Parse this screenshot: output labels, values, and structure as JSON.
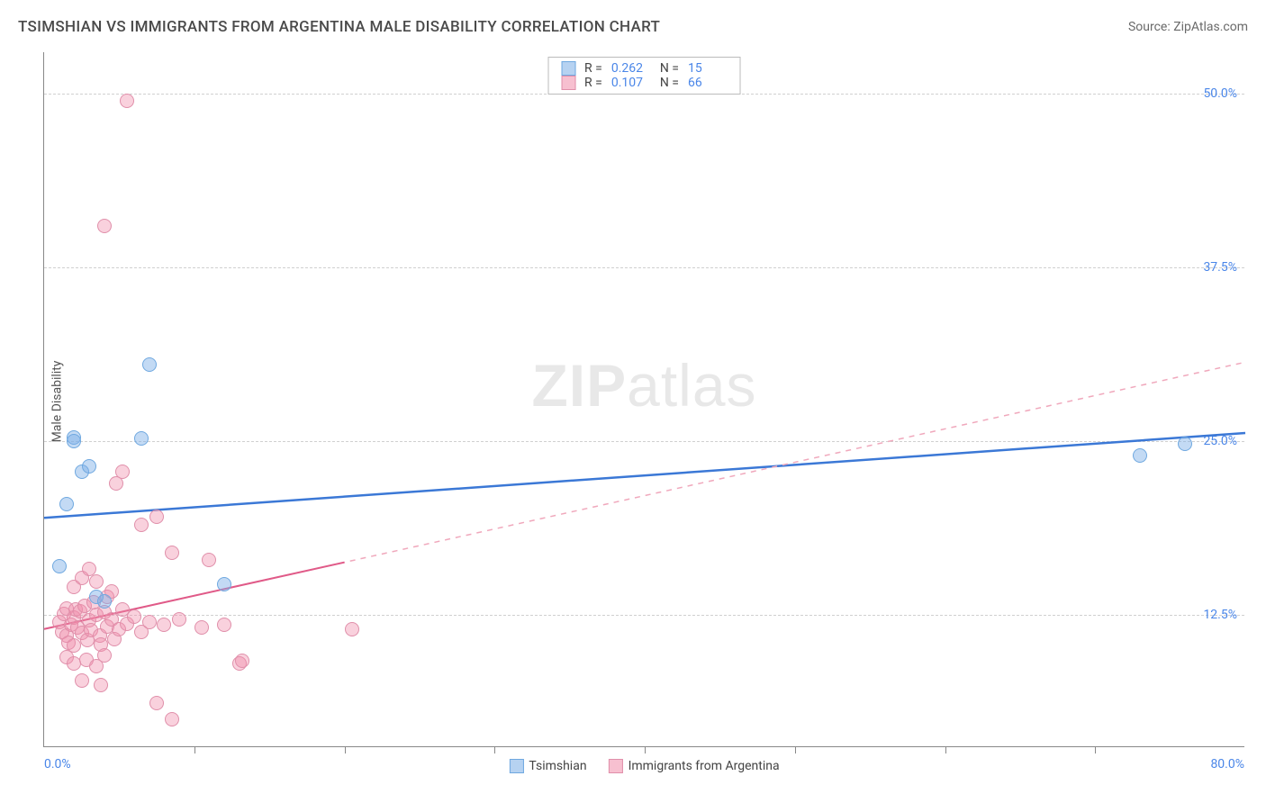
{
  "title": "TSIMSHIAN VS IMMIGRANTS FROM ARGENTINA MALE DISABILITY CORRELATION CHART",
  "source": "Source: ZipAtlas.com",
  "watermark": {
    "bold": "ZIP",
    "light": "atlas"
  },
  "y_axis_label": "Male Disability",
  "xlim": [
    0,
    80
  ],
  "ylim": [
    3,
    53
  ],
  "grid_y_values": [
    12.5,
    25.0,
    37.5,
    50.0
  ],
  "grid_y_labels": [
    "12.5%",
    "25.0%",
    "37.5%",
    "50.0%"
  ],
  "x_ticks": [
    10,
    20,
    30,
    40,
    50,
    60,
    70
  ],
  "x_min_label": "0.0%",
  "x_max_label": "80.0%",
  "grid_color": "#d0d0d0",
  "axis_color": "#888888",
  "tick_label_color": "#4a86e8",
  "series": [
    {
      "name": "Tsimshian",
      "color_fill": "rgba(122,173,230,0.45)",
      "color_stroke": "#6fa8e0",
      "marker_radius": 8,
      "trend": {
        "y_at_x0": 19.5,
        "y_at_x80": 25.6,
        "solid_x_min": 0,
        "solid_x_max": 80,
        "color": "#3b78d6",
        "width": 2.5,
        "dash_color": "#6fa8e0"
      },
      "R": "0.262",
      "N": "15",
      "points": [
        [
          1.0,
          16.0
        ],
        [
          1.5,
          20.5
        ],
        [
          2.0,
          25.3
        ],
        [
          2.0,
          25.0
        ],
        [
          2.5,
          22.8
        ],
        [
          3.0,
          23.2
        ],
        [
          6.5,
          25.2
        ],
        [
          3.5,
          13.8
        ],
        [
          4.0,
          13.5
        ],
        [
          7.0,
          30.5
        ],
        [
          12.0,
          14.7
        ],
        [
          73.0,
          24.0
        ],
        [
          76.0,
          24.8
        ]
      ]
    },
    {
      "name": "Immigrants from Argentina",
      "color_fill": "rgba(240,140,170,0.40)",
      "color_stroke": "#e08faa",
      "marker_radius": 8,
      "trend": {
        "y_at_x0": 11.5,
        "y_at_x80": 30.7,
        "solid_x_min": 0,
        "solid_x_max": 20,
        "color": "#e05a88",
        "width": 2,
        "dash_color": "#f0a8bc"
      },
      "R": "0.107",
      "N": "66",
      "points": [
        [
          5.5,
          49.5
        ],
        [
          4.0,
          40.5
        ],
        [
          1.0,
          12.0
        ],
        [
          1.2,
          11.3
        ],
        [
          1.3,
          12.6
        ],
        [
          1.5,
          11.0
        ],
        [
          1.5,
          13.0
        ],
        [
          1.6,
          10.5
        ],
        [
          1.8,
          11.8
        ],
        [
          2.0,
          12.3
        ],
        [
          2.0,
          10.3
        ],
        [
          2.1,
          12.9
        ],
        [
          2.2,
          11.6
        ],
        [
          2.4,
          12.8
        ],
        [
          2.5,
          11.2
        ],
        [
          2.7,
          13.2
        ],
        [
          2.9,
          10.7
        ],
        [
          3.0,
          12.1
        ],
        [
          3.1,
          11.4
        ],
        [
          3.3,
          13.4
        ],
        [
          3.5,
          12.5
        ],
        [
          3.7,
          11.0
        ],
        [
          3.8,
          10.4
        ],
        [
          4.0,
          12.7
        ],
        [
          4.2,
          11.7
        ],
        [
          4.2,
          13.8
        ],
        [
          4.5,
          12.2
        ],
        [
          4.7,
          10.8
        ],
        [
          5.0,
          11.5
        ],
        [
          5.2,
          12.9
        ],
        [
          5.5,
          11.9
        ],
        [
          6.0,
          12.4
        ],
        [
          6.5,
          11.3
        ],
        [
          7.0,
          12.0
        ],
        [
          2.0,
          14.5
        ],
        [
          2.5,
          15.2
        ],
        [
          3.0,
          15.8
        ],
        [
          3.5,
          14.9
        ],
        [
          4.5,
          14.2
        ],
        [
          1.5,
          9.5
        ],
        [
          2.0,
          9.0
        ],
        [
          2.8,
          9.3
        ],
        [
          3.5,
          8.8
        ],
        [
          4.0,
          9.6
        ],
        [
          2.5,
          7.8
        ],
        [
          3.8,
          7.5
        ],
        [
          4.8,
          22.0
        ],
        [
          5.2,
          22.8
        ],
        [
          6.5,
          19.0
        ],
        [
          7.5,
          19.6
        ],
        [
          8.5,
          17.0
        ],
        [
          11.0,
          16.5
        ],
        [
          8.0,
          11.8
        ],
        [
          9.0,
          12.2
        ],
        [
          10.5,
          11.6
        ],
        [
          12.0,
          11.8
        ],
        [
          13.0,
          9.0
        ],
        [
          13.2,
          9.2
        ],
        [
          7.5,
          6.2
        ],
        [
          8.5,
          5.0
        ],
        [
          20.5,
          11.5
        ]
      ]
    }
  ],
  "legend_top": {
    "rows": [
      {
        "swatch_fill": "rgba(122,173,230,0.55)",
        "swatch_stroke": "#6fa8e0",
        "R_label": "R =",
        "R_val": "0.262",
        "N_label": "N =",
        "N_val": "15"
      },
      {
        "swatch_fill": "rgba(240,140,170,0.55)",
        "swatch_stroke": "#e08faa",
        "R_label": "R =",
        "R_val": "0.107",
        "N_label": "N =",
        "N_val": "66"
      }
    ]
  },
  "legend_bottom": {
    "items": [
      {
        "swatch_fill": "rgba(122,173,230,0.55)",
        "swatch_stroke": "#6fa8e0",
        "label": "Tsimshian"
      },
      {
        "swatch_fill": "rgba(240,140,170,0.55)",
        "swatch_stroke": "#e08faa",
        "label": "Immigrants from Argentina"
      }
    ]
  }
}
